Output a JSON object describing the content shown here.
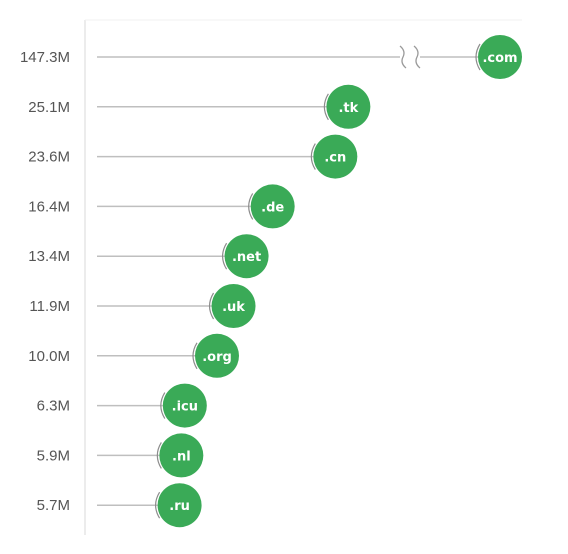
{
  "chart_data": {
    "type": "lollipop",
    "title": "",
    "xlabel": "",
    "ylabel": "",
    "categories": [
      ".com",
      ".tk",
      ".cn",
      ".de",
      ".net",
      ".uk",
      ".org",
      ".icu",
      ".nl",
      ".ru"
    ],
    "values": [
      147.3,
      25.1,
      23.6,
      16.4,
      13.4,
      11.9,
      10.0,
      6.3,
      5.9,
      5.7
    ],
    "value_labels": [
      "147.3M",
      "25.1M",
      "23.6M",
      "16.4M",
      "13.4M",
      "11.9M",
      "10.0M",
      "6.3M",
      "5.9M",
      "5.7M"
    ],
    "unit": "M",
    "axis_break": true,
    "grid": false,
    "legend": "none",
    "colors": {
      "bubble": "#3aaa57",
      "line": "#bfbfbf",
      "axis": "#e6e6e6",
      "label": "#555555",
      "bubble_text": "#ffffff"
    }
  }
}
